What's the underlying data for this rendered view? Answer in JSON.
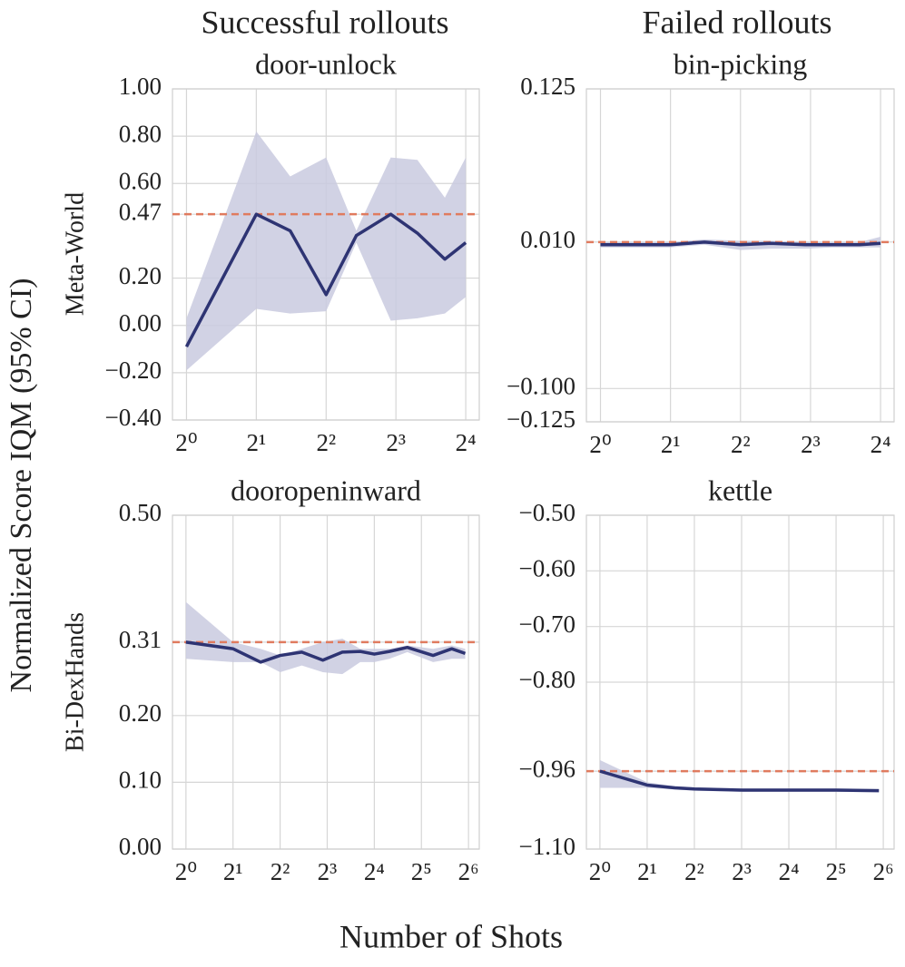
{
  "column_titles": [
    "Successful rollouts",
    "Failed rollouts"
  ],
  "row_labels": [
    "Meta-World",
    "Bi-DexHands"
  ],
  "ylabel": "Normalized Score IQM (95% CI)",
  "xlabel": "Number of Shots",
  "chart_data": [
    {
      "type": "line",
      "title": "door-unlock",
      "log_x": true,
      "grid": true,
      "color": "#2e3473",
      "band_color": "#c9cadf",
      "reference_color": "#e07b5f",
      "x": [
        1,
        2,
        2.8,
        4,
        5.4,
        7.6,
        9.9,
        13,
        16
      ],
      "values": [
        -0.09,
        0.47,
        0.4,
        0.13,
        0.38,
        0.47,
        0.39,
        0.28,
        0.35
      ],
      "ci_lower": [
        -0.19,
        0.07,
        0.05,
        0.06,
        0.35,
        0.02,
        0.03,
        0.05,
        0.12
      ],
      "ci_upper": [
        0.03,
        0.82,
        0.63,
        0.71,
        0.4,
        0.71,
        0.7,
        0.54,
        0.71
      ],
      "reference_line": 0.47,
      "xlim": [
        0.87,
        18.3
      ],
      "xticks": [
        {
          "value": 1,
          "label": "2⁰"
        },
        {
          "value": 2,
          "label": "2¹"
        },
        {
          "value": 4,
          "label": "2²"
        },
        {
          "value": 8,
          "label": "2³"
        },
        {
          "value": 16,
          "label": "2⁴"
        }
      ],
      "ylim": [
        -0.4,
        1.0
      ],
      "yticks": [
        {
          "value": 1.0,
          "label": "1.00"
        },
        {
          "value": 0.8,
          "label": "0.80"
        },
        {
          "value": 0.6,
          "label": "0.60"
        },
        {
          "value": 0.47,
          "label": "0.47"
        },
        {
          "value": 0.2,
          "label": "0.20"
        },
        {
          "value": 0,
          "label": "0.00"
        },
        {
          "value": -0.2,
          "label": "−0.20"
        },
        {
          "value": -0.4,
          "label": "−0.40"
        }
      ]
    },
    {
      "type": "line",
      "title": "bin-picking",
      "log_x": true,
      "grid": true,
      "color": "#2e3473",
      "band_color": "#c9cadf",
      "reference_color": "#e07b5f",
      "x": [
        1,
        2,
        2.8,
        4,
        5.4,
        7.6,
        9.9,
        13,
        16
      ],
      "values": [
        0.008,
        0.008,
        0.01,
        0.008,
        0.009,
        0.008,
        0.008,
        0.008,
        0.009
      ],
      "ci_lower": [
        0.006,
        0.006,
        0.008,
        0.004,
        0.005,
        0.005,
        0.006,
        0.006,
        0.006
      ],
      "ci_upper": [
        0.01,
        0.01,
        0.012,
        0.011,
        0.011,
        0.01,
        0.01,
        0.01,
        0.014
      ],
      "reference_line": 0.01,
      "xlim": [
        0.87,
        18.3
      ],
      "xticks": [
        {
          "value": 1,
          "label": "2⁰"
        },
        {
          "value": 2,
          "label": "2¹"
        },
        {
          "value": 4,
          "label": "2²"
        },
        {
          "value": 8,
          "label": "2³"
        },
        {
          "value": 16,
          "label": "2⁴"
        }
      ],
      "ylim": [
        -0.125,
        0.125
      ],
      "yticks": [
        {
          "value": 0.125,
          "label": "0.125"
        },
        {
          "value": 0.01,
          "label": "0.010"
        },
        {
          "value": -0.1,
          "label": "−0.100"
        },
        {
          "value": -0.125,
          "label": "−0.125"
        }
      ]
    },
    {
      "type": "line",
      "title": "dooropeninward",
      "log_x": true,
      "grid": true,
      "color": "#2e3473",
      "band_color": "#c9cadf",
      "reference_color": "#e07b5f",
      "x": [
        1,
        2,
        3,
        4,
        5.5,
        7.5,
        10,
        13,
        16,
        20,
        26,
        38,
        50,
        61
      ],
      "values": [
        0.31,
        0.3,
        0.28,
        0.29,
        0.295,
        0.283,
        0.295,
        0.296,
        0.292,
        0.296,
        0.302,
        0.29,
        0.3,
        0.293
      ],
      "ci_lower": [
        0.285,
        0.28,
        0.28,
        0.265,
        0.275,
        0.265,
        0.262,
        0.28,
        0.28,
        0.285,
        0.295,
        0.28,
        0.285,
        0.285
      ],
      "ci_upper": [
        0.37,
        0.31,
        0.3,
        0.29,
        0.3,
        0.31,
        0.315,
        0.3,
        0.3,
        0.3,
        0.305,
        0.3,
        0.305,
        0.3
      ],
      "reference_line": 0.31,
      "xlim": [
        0.82,
        75
      ],
      "xticks": [
        {
          "value": 1,
          "label": "2⁰"
        },
        {
          "value": 2,
          "label": "2¹"
        },
        {
          "value": 4,
          "label": "2²"
        },
        {
          "value": 8,
          "label": "2³"
        },
        {
          "value": 16,
          "label": "2⁴"
        },
        {
          "value": 32,
          "label": "2⁵"
        },
        {
          "value": 64,
          "label": "2⁶"
        }
      ],
      "ylim": [
        0,
        0.5
      ],
      "yticks": [
        {
          "value": 0.5,
          "label": "0.50"
        },
        {
          "value": 0.31,
          "label": "0.31"
        },
        {
          "value": 0.2,
          "label": "0.20"
        },
        {
          "value": 0.1,
          "label": "0.10"
        },
        {
          "value": 0,
          "label": "0.00"
        }
      ]
    },
    {
      "type": "line",
      "title": "kettle",
      "log_x": true,
      "grid": true,
      "color": "#2e3473",
      "band_color": "#c9cadf",
      "reference_color": "#e07b5f",
      "x": [
        1,
        2,
        3,
        4,
        8,
        16,
        32,
        60
      ],
      "values": [
        -0.96,
        -0.985,
        -0.99,
        -0.992,
        -0.994,
        -0.994,
        -0.994,
        -0.995
      ],
      "ci_lower": [
        -0.99,
        -0.99,
        -0.993,
        -0.995,
        -0.997,
        -0.997,
        -0.997,
        -0.998
      ],
      "ci_upper": [
        -0.94,
        -0.98,
        -0.987,
        -0.989,
        -0.991,
        -0.991,
        -0.991,
        -0.992
      ],
      "reference_line": -0.96,
      "xlim": [
        0.82,
        75
      ],
      "xticks": [
        {
          "value": 1,
          "label": "2⁰"
        },
        {
          "value": 2,
          "label": "2¹"
        },
        {
          "value": 4,
          "label": "2²"
        },
        {
          "value": 8,
          "label": "2³"
        },
        {
          "value": 16,
          "label": "2⁴"
        },
        {
          "value": 32,
          "label": "2⁵"
        },
        {
          "value": 64,
          "label": "2⁶"
        }
      ],
      "ylim": [
        -1.1,
        -0.5
      ],
      "yticks": [
        {
          "value": -0.5,
          "label": "−0.50"
        },
        {
          "value": -0.6,
          "label": "−0.60"
        },
        {
          "value": -0.7,
          "label": "−0.70"
        },
        {
          "value": -0.8,
          "label": "−0.80"
        },
        {
          "value": -0.96,
          "label": "−0.96"
        },
        {
          "value": -1.1,
          "label": "−1.10"
        }
      ]
    }
  ]
}
